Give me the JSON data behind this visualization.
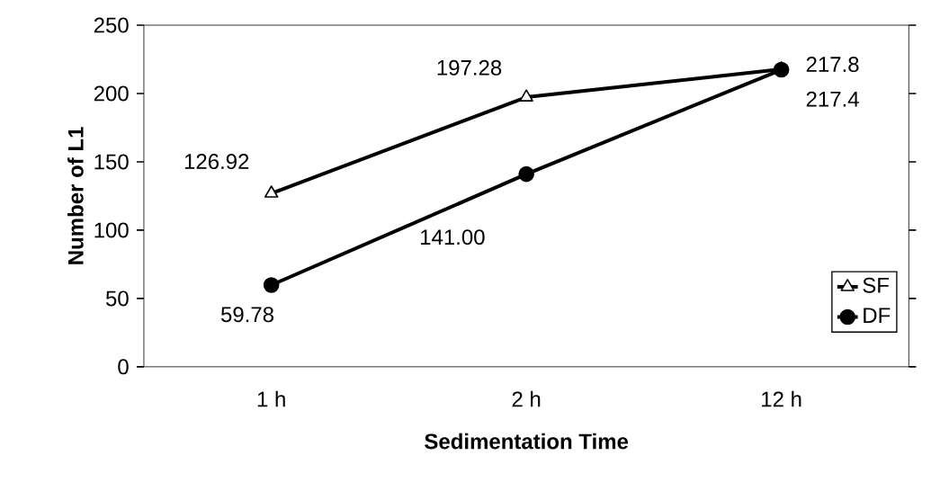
{
  "chart_data": {
    "type": "line",
    "xlabel": "Sedimentation Time",
    "ylabel": "Number of L1",
    "categories": [
      "1 h",
      "2 h",
      "12 h"
    ],
    "series": [
      {
        "name": "SF",
        "color": "#000000",
        "marker": "triangle",
        "values": [
          126.92,
          197.28,
          217.8
        ],
        "value_labels": [
          "126.92",
          "197.28",
          "217.8"
        ]
      },
      {
        "name": "DF",
        "color": "#000000",
        "marker": "circle",
        "values": [
          59.78,
          141.0,
          217.4
        ],
        "value_labels": [
          "59.78",
          "141.00",
          "217.4"
        ]
      }
    ],
    "ylim": [
      0,
      250
    ],
    "yticks": [
      0,
      50,
      100,
      150,
      200,
      250
    ],
    "grid": false,
    "legend": "bottom right",
    "line_style": "solid"
  }
}
